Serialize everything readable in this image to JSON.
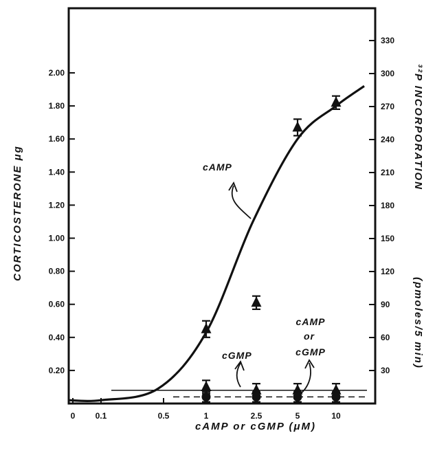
{
  "chart_data": {
    "type": "line",
    "xlabel": "cAMP or cGMP (μM)",
    "ylabel_left": "CORTICOSTERONE μg",
    "ylabel_right_main": "³²P INCORPORATION",
    "ylabel_right_unit": "(pmoles/5 min)",
    "x_ticks": [
      "0",
      "0.1",
      "0.5",
      "1",
      "2.5",
      "5",
      "10"
    ],
    "y_left_ticks": [
      "0.20",
      "0.40",
      "0.60",
      "0.80",
      "1.00",
      "1.20",
      "1.40",
      "1.60",
      "1.80",
      "2.00"
    ],
    "y_right_ticks": [
      "30",
      "60",
      "90",
      "120",
      "150",
      "180",
      "210",
      "240",
      "270",
      "300",
      "330"
    ],
    "ylim_left": [
      0,
      2.2
    ],
    "ylim_right": [
      0,
      345
    ],
    "annotations": {
      "camp": "cAMP",
      "cgmp": "cGMP",
      "either_line1": "cAMP",
      "either_line2": "or",
      "either_line3": "cGMP"
    },
    "series": [
      {
        "marker": "triangle",
        "points": [
          {
            "x": "1",
            "y": 0.45,
            "err": 0.05
          },
          {
            "x": "2.5",
            "y": 0.61,
            "err": 0.04
          },
          {
            "x": "5",
            "y": 1.67,
            "err": 0.05
          },
          {
            "x": "10",
            "y": 1.82,
            "err": 0.04
          }
        ]
      },
      {
        "marker": "triangle",
        "points": [
          {
            "x": "1",
            "y": 0.1,
            "err": 0.04
          },
          {
            "x": "2.5",
            "y": 0.08,
            "err": 0.04
          },
          {
            "x": "5",
            "y": 0.08,
            "err": 0.04
          },
          {
            "x": "10",
            "y": 0.08,
            "err": 0.04
          }
        ]
      },
      {
        "marker": "circle",
        "points": [
          {
            "x": "1",
            "y": 0.04,
            "err": 0.03
          },
          {
            "x": "2.5",
            "y": 0.04,
            "err": 0.03
          },
          {
            "x": "5",
            "y": 0.04,
            "err": 0.03
          },
          {
            "x": "10",
            "y": 0.04,
            "err": 0.03
          }
        ]
      }
    ],
    "fit_curve": {
      "y": [
        0.02,
        0.02,
        0.09,
        0.43,
        1.1,
        1.6,
        1.8,
        1.92
      ]
    },
    "reference_lines": {
      "solid_y": 0.08,
      "dashed_y": 0.04
    }
  }
}
